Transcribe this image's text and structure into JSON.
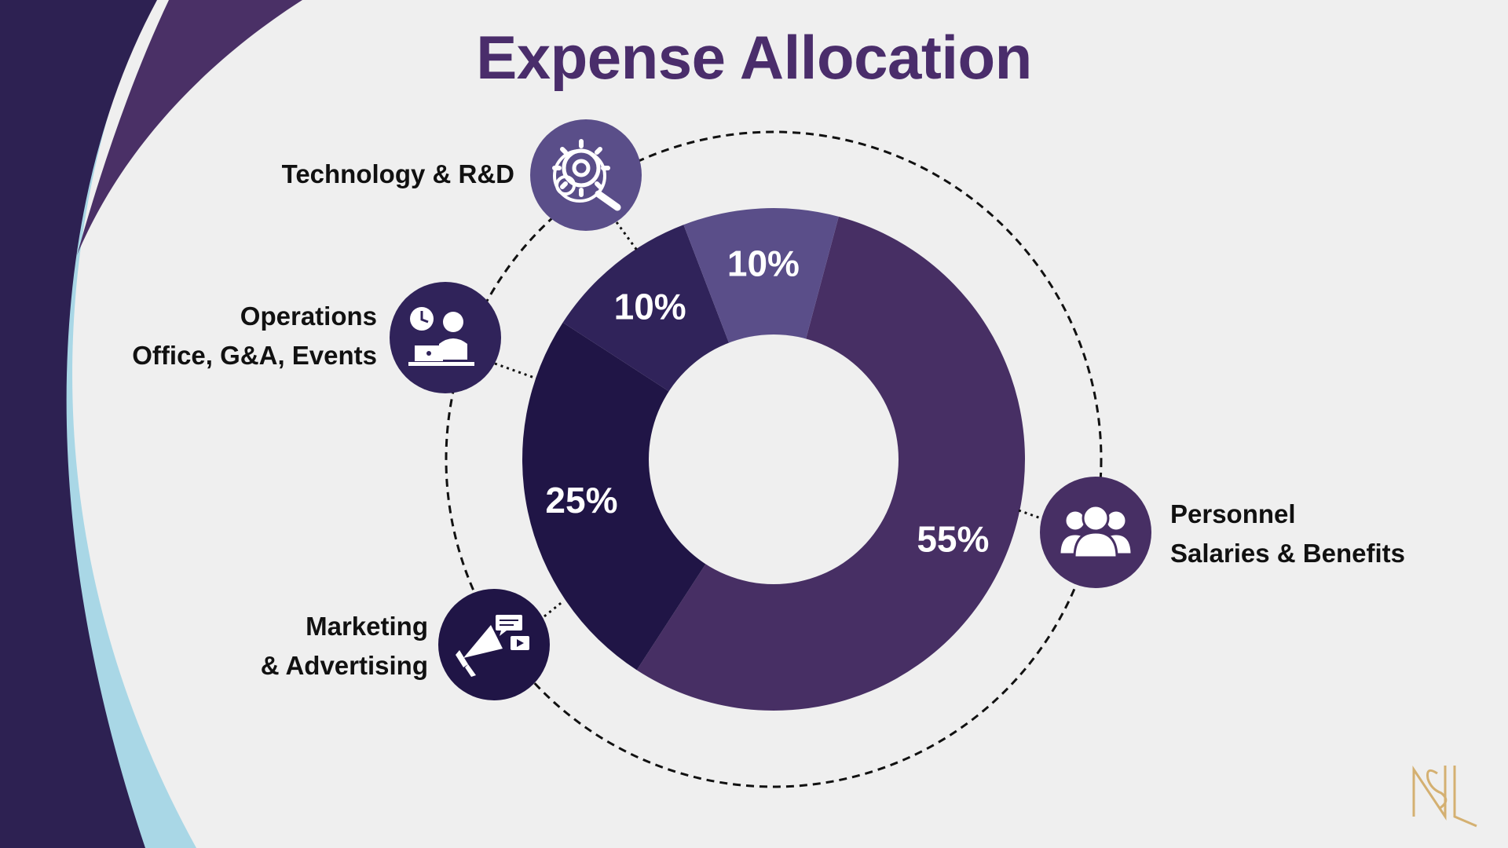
{
  "title": "Expense Allocation",
  "colors": {
    "background": "#efefef",
    "title": "#4a2d6b",
    "personnel": "#472f64",
    "marketing": "#201546",
    "operations": "#30235a",
    "technology": "#5a4e89",
    "accent_light_blue": "#a9d7e6",
    "side_dark": "#2d2152",
    "logo_gold": "#d4b071"
  },
  "chart_data": {
    "type": "pie",
    "variant": "donut",
    "categories": [
      "Personnel",
      "Marketing & Advertising",
      "Operations",
      "Technology & R&D"
    ],
    "values": [
      55,
      25,
      10,
      10
    ],
    "value_labels": [
      "55%",
      "25%",
      "10%",
      "10%"
    ],
    "legend_placement": "callouts around donut"
  },
  "callouts": {
    "technology": {
      "lines": [
        "Technology & R&D"
      ],
      "icon": "gear-magnifier-icon"
    },
    "operations": {
      "lines": [
        "Operations",
        "Office, G&A, Events"
      ],
      "icon": "office-worker-icon"
    },
    "marketing": {
      "lines": [
        "Marketing",
        "& Advertising"
      ],
      "icon": "megaphone-icon"
    },
    "personnel": {
      "lines": [
        "Personnel",
        "Salaries & Benefits"
      ],
      "icon": "people-group-icon"
    }
  },
  "logo": {
    "text": "NSL",
    "icon": "nsl-monogram-logo"
  }
}
